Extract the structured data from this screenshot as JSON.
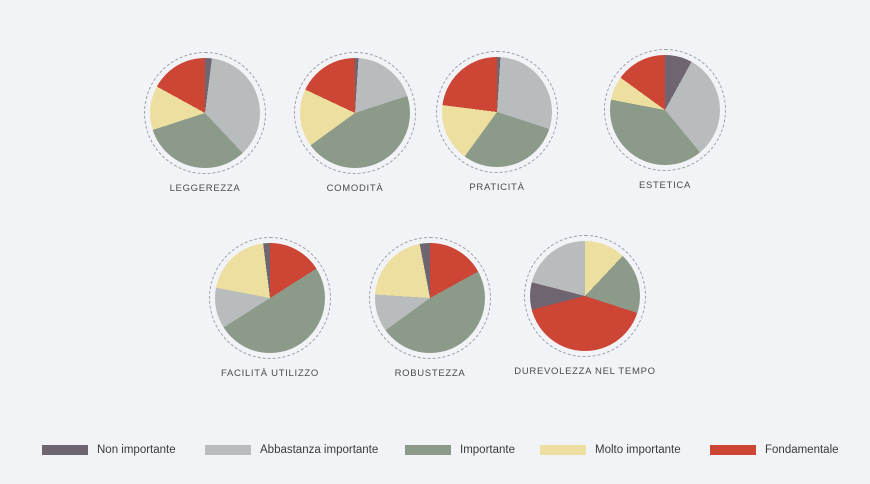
{
  "page": {
    "background": "#f2f3f7"
  },
  "legend": {
    "position": "bottom",
    "items": [
      {
        "label": "Non importante",
        "color": "#6e6570"
      },
      {
        "label": "Abbastanza importante",
        "color": "#b9bcbd"
      },
      {
        "label": "Importante",
        "color": "#8c9a8a"
      },
      {
        "label": "Molto importante",
        "color": "#ecdfa0"
      },
      {
        "label": "Fondamentale",
        "color": "#cd4534"
      }
    ]
  },
  "chart_data": {
    "type": "pie",
    "unit": "percent",
    "segment_order": "clockwise from 12 o'clock",
    "grid": false,
    "categories": [
      "Non importante",
      "Abbastanza importante",
      "Importante",
      "Molto importante",
      "Fondamentale"
    ],
    "pies": [
      {
        "title": "LEGGEREZZA",
        "segments": [
          {
            "category": "Non importante",
            "value": 2
          },
          {
            "category": "Abbastanza importante",
            "value": 36
          },
          {
            "category": "Importante",
            "value": 32
          },
          {
            "category": "Molto importante",
            "value": 13
          },
          {
            "category": "Fondamentale",
            "value": 17
          }
        ]
      },
      {
        "title": "COMODITÀ",
        "segments": [
          {
            "category": "Non importante",
            "value": 1
          },
          {
            "category": "Abbastanza importante",
            "value": 19
          },
          {
            "category": "Importante",
            "value": 45
          },
          {
            "category": "Molto importante",
            "value": 17
          },
          {
            "category": "Fondamentale",
            "value": 18
          }
        ]
      },
      {
        "title": "PRATICITÀ",
        "segments": [
          {
            "category": "Non importante",
            "value": 1
          },
          {
            "category": "Abbastanza importante",
            "value": 29
          },
          {
            "category": "Importante",
            "value": 30
          },
          {
            "category": "Molto importante",
            "value": 17
          },
          {
            "category": "Fondamentale",
            "value": 23
          }
        ]
      },
      {
        "title": "ESTETICA",
        "segments": [
          {
            "category": "Non importante",
            "value": 8
          },
          {
            "category": "Abbastanza importante",
            "value": 31
          },
          {
            "category": "Importante",
            "value": 39
          },
          {
            "category": "Molto importante",
            "value": 7
          },
          {
            "category": "Fondamentale",
            "value": 15
          }
        ]
      },
      {
        "title": "FACILITÀ UTILIZZO",
        "segments": [
          {
            "category": "Fondamentale",
            "value": 16
          },
          {
            "category": "Importante",
            "value": 50
          },
          {
            "category": "Abbastanza importante",
            "value": 12
          },
          {
            "category": "Molto importante",
            "value": 20
          },
          {
            "category": "Non importante",
            "value": 2
          }
        ]
      },
      {
        "title": "ROBUSTEZZA",
        "segments": [
          {
            "category": "Fondamentale",
            "value": 17
          },
          {
            "category": "Importante",
            "value": 48
          },
          {
            "category": "Abbastanza importante",
            "value": 11
          },
          {
            "category": "Molto importante",
            "value": 21
          },
          {
            "category": "Non importante",
            "value": 3
          }
        ]
      },
      {
        "title": "DUREVOLEZZA NEL TEMPO",
        "segments": [
          {
            "category": "Molto importante",
            "value": 12
          },
          {
            "category": "Importante",
            "value": 18
          },
          {
            "category": "Fondamentale",
            "value": 41
          },
          {
            "category": "Non importante",
            "value": 8
          },
          {
            "category": "Abbastanza importante",
            "value": 21
          }
        ]
      }
    ]
  }
}
